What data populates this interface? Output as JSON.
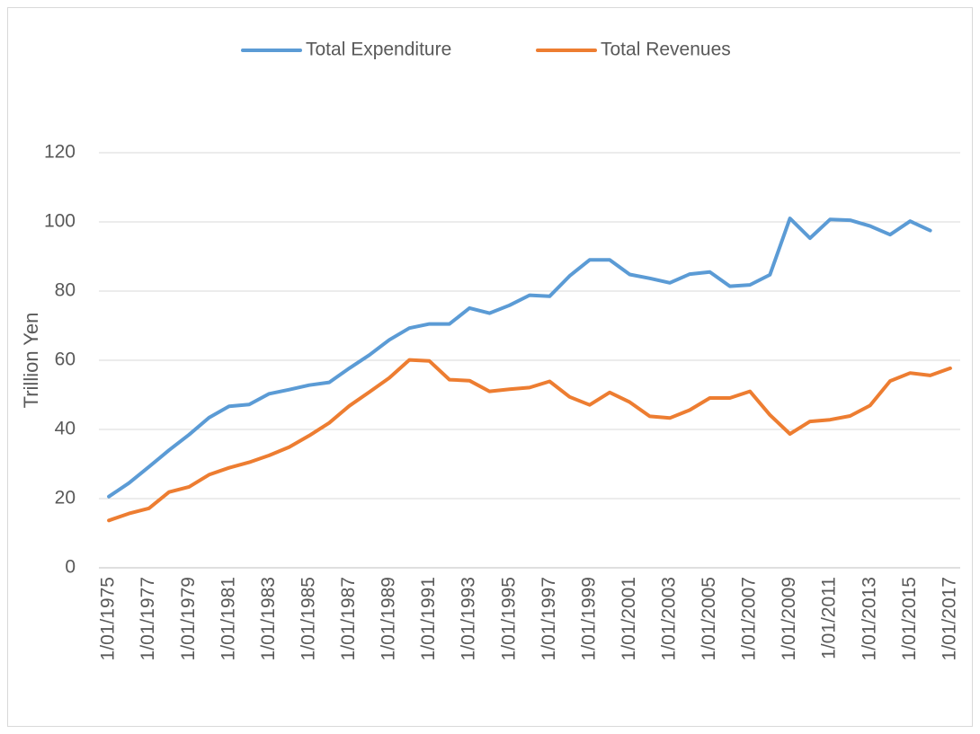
{
  "chart_data": {
    "type": "line",
    "y_label": "Trillion Yen",
    "categories": [
      "1/01/1975",
      null,
      "1/01/1977",
      null,
      "1/01/1979",
      null,
      "1/01/1981",
      null,
      "1/01/1983",
      null,
      "1/01/1985",
      null,
      "1/01/1987",
      null,
      "1/01/1989",
      null,
      "1/01/1991",
      null,
      "1/01/1993",
      null,
      "1/01/1995",
      null,
      "1/01/1997",
      null,
      "1/01/1999",
      null,
      "1/01/2001",
      null,
      "1/01/2003",
      null,
      "1/01/2005",
      null,
      "1/01/2007",
      null,
      "1/01/2009",
      null,
      "1/01/2011",
      null,
      "1/01/2013",
      null,
      "1/01/2015",
      null,
      "1/01/2017"
    ],
    "series": [
      {
        "name": "Total Expenditure",
        "color": "#5b9bd5",
        "values": [
          20.6,
          24.5,
          29.2,
          34,
          38.5,
          43.4,
          46.7,
          47.2,
          50.3,
          51.5,
          52.8,
          53.6,
          57.7,
          61.5,
          65.9,
          69.3,
          70.5,
          70.5,
          75.1,
          73.6,
          75.9,
          78.8,
          78.5,
          84.4,
          89,
          89,
          84.8,
          83.7,
          82.4,
          84.9,
          85.5,
          81.4,
          81.8,
          84.7,
          101,
          95.3,
          100.7,
          100.5,
          98.8,
          96.3,
          100.2,
          97.5,
          null
        ]
      },
      {
        "name": "Total Revenues",
        "color": "#ed7d31",
        "values": [
          13.7,
          15.7,
          17.2,
          21.9,
          23.4,
          26.9,
          28.9,
          30.5,
          32.5,
          34.9,
          38.2,
          41.9,
          46.8,
          50.8,
          54.9,
          60.1,
          59.8,
          54.4,
          54.1,
          51,
          51.6,
          52.1,
          53.9,
          49.4,
          47.1,
          50.7,
          47.9,
          43.8,
          43.3,
          45.6,
          49.1,
          49.1,
          51,
          44.2,
          38.7,
          42.3,
          42.8,
          43.9,
          46.9,
          54,
          56.3,
          55.6,
          57.7
        ]
      }
    ],
    "ylim": [
      0,
      120
    ],
    "yticks": [
      0,
      20,
      40,
      60,
      80,
      100,
      120
    ],
    "grid": true,
    "legend": "top"
  }
}
